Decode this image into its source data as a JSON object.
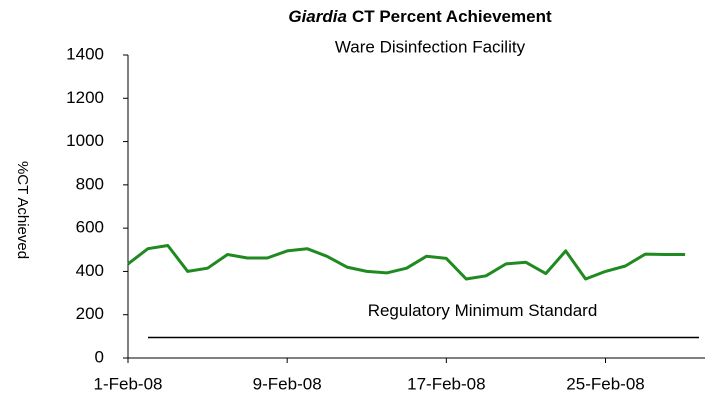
{
  "chart_data": {
    "type": "line",
    "title": [
      "Giardia",
      "CT Percent Achievement"
    ],
    "subtitle": "Ware Disinfection Facility",
    "y_label": "%CT Achieved",
    "x": [
      "2008-02-01",
      "2008-02-02",
      "2008-02-03",
      "2008-02-04",
      "2008-02-05",
      "2008-02-06",
      "2008-02-07",
      "2008-02-08",
      "2008-02-09",
      "2008-02-10",
      "2008-02-11",
      "2008-02-12",
      "2008-02-13",
      "2008-02-14",
      "2008-02-15",
      "2008-02-16",
      "2008-02-17",
      "2008-02-18",
      "2008-02-19",
      "2008-02-20",
      "2008-02-21",
      "2008-02-22",
      "2008-02-23",
      "2008-02-24",
      "2008-02-25",
      "2008-02-26",
      "2008-02-27",
      "2008-02-28",
      "2008-02-29"
    ],
    "series": [
      {
        "name": "%CT Achieved",
        "color": "#1f8a1f",
        "values": [
          435,
          505,
          520,
          400,
          415,
          478,
          462,
          462,
          495,
          505,
          470,
          420,
          400,
          393,
          415,
          470,
          460,
          365,
          380,
          435,
          442,
          390,
          495,
          365,
          400,
          425,
          480,
          478,
          478
        ]
      }
    ],
    "reference_line": {
      "label": "Regulatory Minimum Standard",
      "value": 95,
      "color": "#000000"
    },
    "xlim": [
      "2008-02-01",
      "2008-03-01"
    ],
    "xticks": [
      {
        "value": "2008-02-01",
        "label": "1-Feb-08"
      },
      {
        "value": "2008-02-09",
        "label": "9-Feb-08"
      },
      {
        "value": "2008-02-17",
        "label": "17-Feb-08"
      },
      {
        "value": "2008-02-25",
        "label": "25-Feb-08"
      }
    ],
    "ylim": [
      0,
      1400
    ],
    "yticks": [
      0,
      200,
      400,
      600,
      800,
      1000,
      1200,
      1400
    ],
    "grid": false
  }
}
